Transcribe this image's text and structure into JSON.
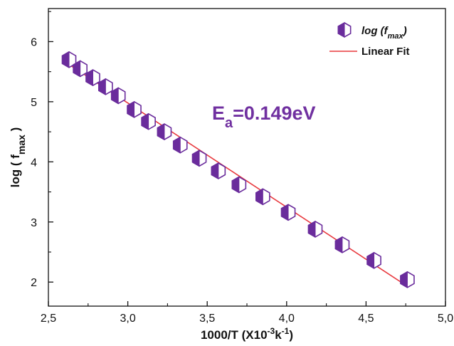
{
  "chart_data": {
    "type": "scatter",
    "xlabel": {
      "main": "1000/T (X10",
      "sup1": "-3",
      "mid": "k",
      "sup2": "-1",
      "end": ")"
    },
    "ylabel": {
      "main": "log ( f",
      "sub": "max",
      "end": " )"
    },
    "xlim": [
      2.5,
      5.0
    ],
    "ylim": [
      1.6,
      6.55
    ],
    "x_ticks": [
      2.5,
      3.0,
      3.5,
      4.0,
      4.5,
      5.0
    ],
    "x_tick_labels": [
      "2,5",
      "3,0",
      "3,5",
      "4,0",
      "4,5",
      "5,0"
    ],
    "y_ticks": [
      2,
      3,
      4,
      5,
      6
    ],
    "y_tick_labels": [
      "2",
      "3",
      "4",
      "5",
      "6"
    ],
    "legend": {
      "placement": "top-right",
      "scatter_label": {
        "main": "log (f",
        "sub": "max",
        "end": ")"
      },
      "fit_label": "Linear Fit"
    },
    "annotation": {
      "main": "E",
      "sub": "a",
      "end": "=0.149eV",
      "color": "#7030a0"
    },
    "marker_color": "#6a2c9c",
    "fit_color": "#e8383d",
    "series": [
      {
        "x": [
          2.63,
          2.7,
          2.78,
          2.86,
          2.94,
          3.04,
          3.13,
          3.23,
          3.33,
          3.45,
          3.57,
          3.7,
          3.85,
          4.01,
          4.18,
          4.35,
          4.55,
          4.76
        ],
        "y": [
          5.7,
          5.55,
          5.4,
          5.25,
          5.1,
          4.87,
          4.67,
          4.5,
          4.28,
          4.06,
          3.85,
          3.62,
          3.42,
          3.16,
          2.88,
          2.62,
          2.36,
          2.04
        ]
      }
    ],
    "fit": {
      "x": [
        2.63,
        4.76
      ],
      "y": [
        5.62,
        1.93
      ]
    }
  }
}
